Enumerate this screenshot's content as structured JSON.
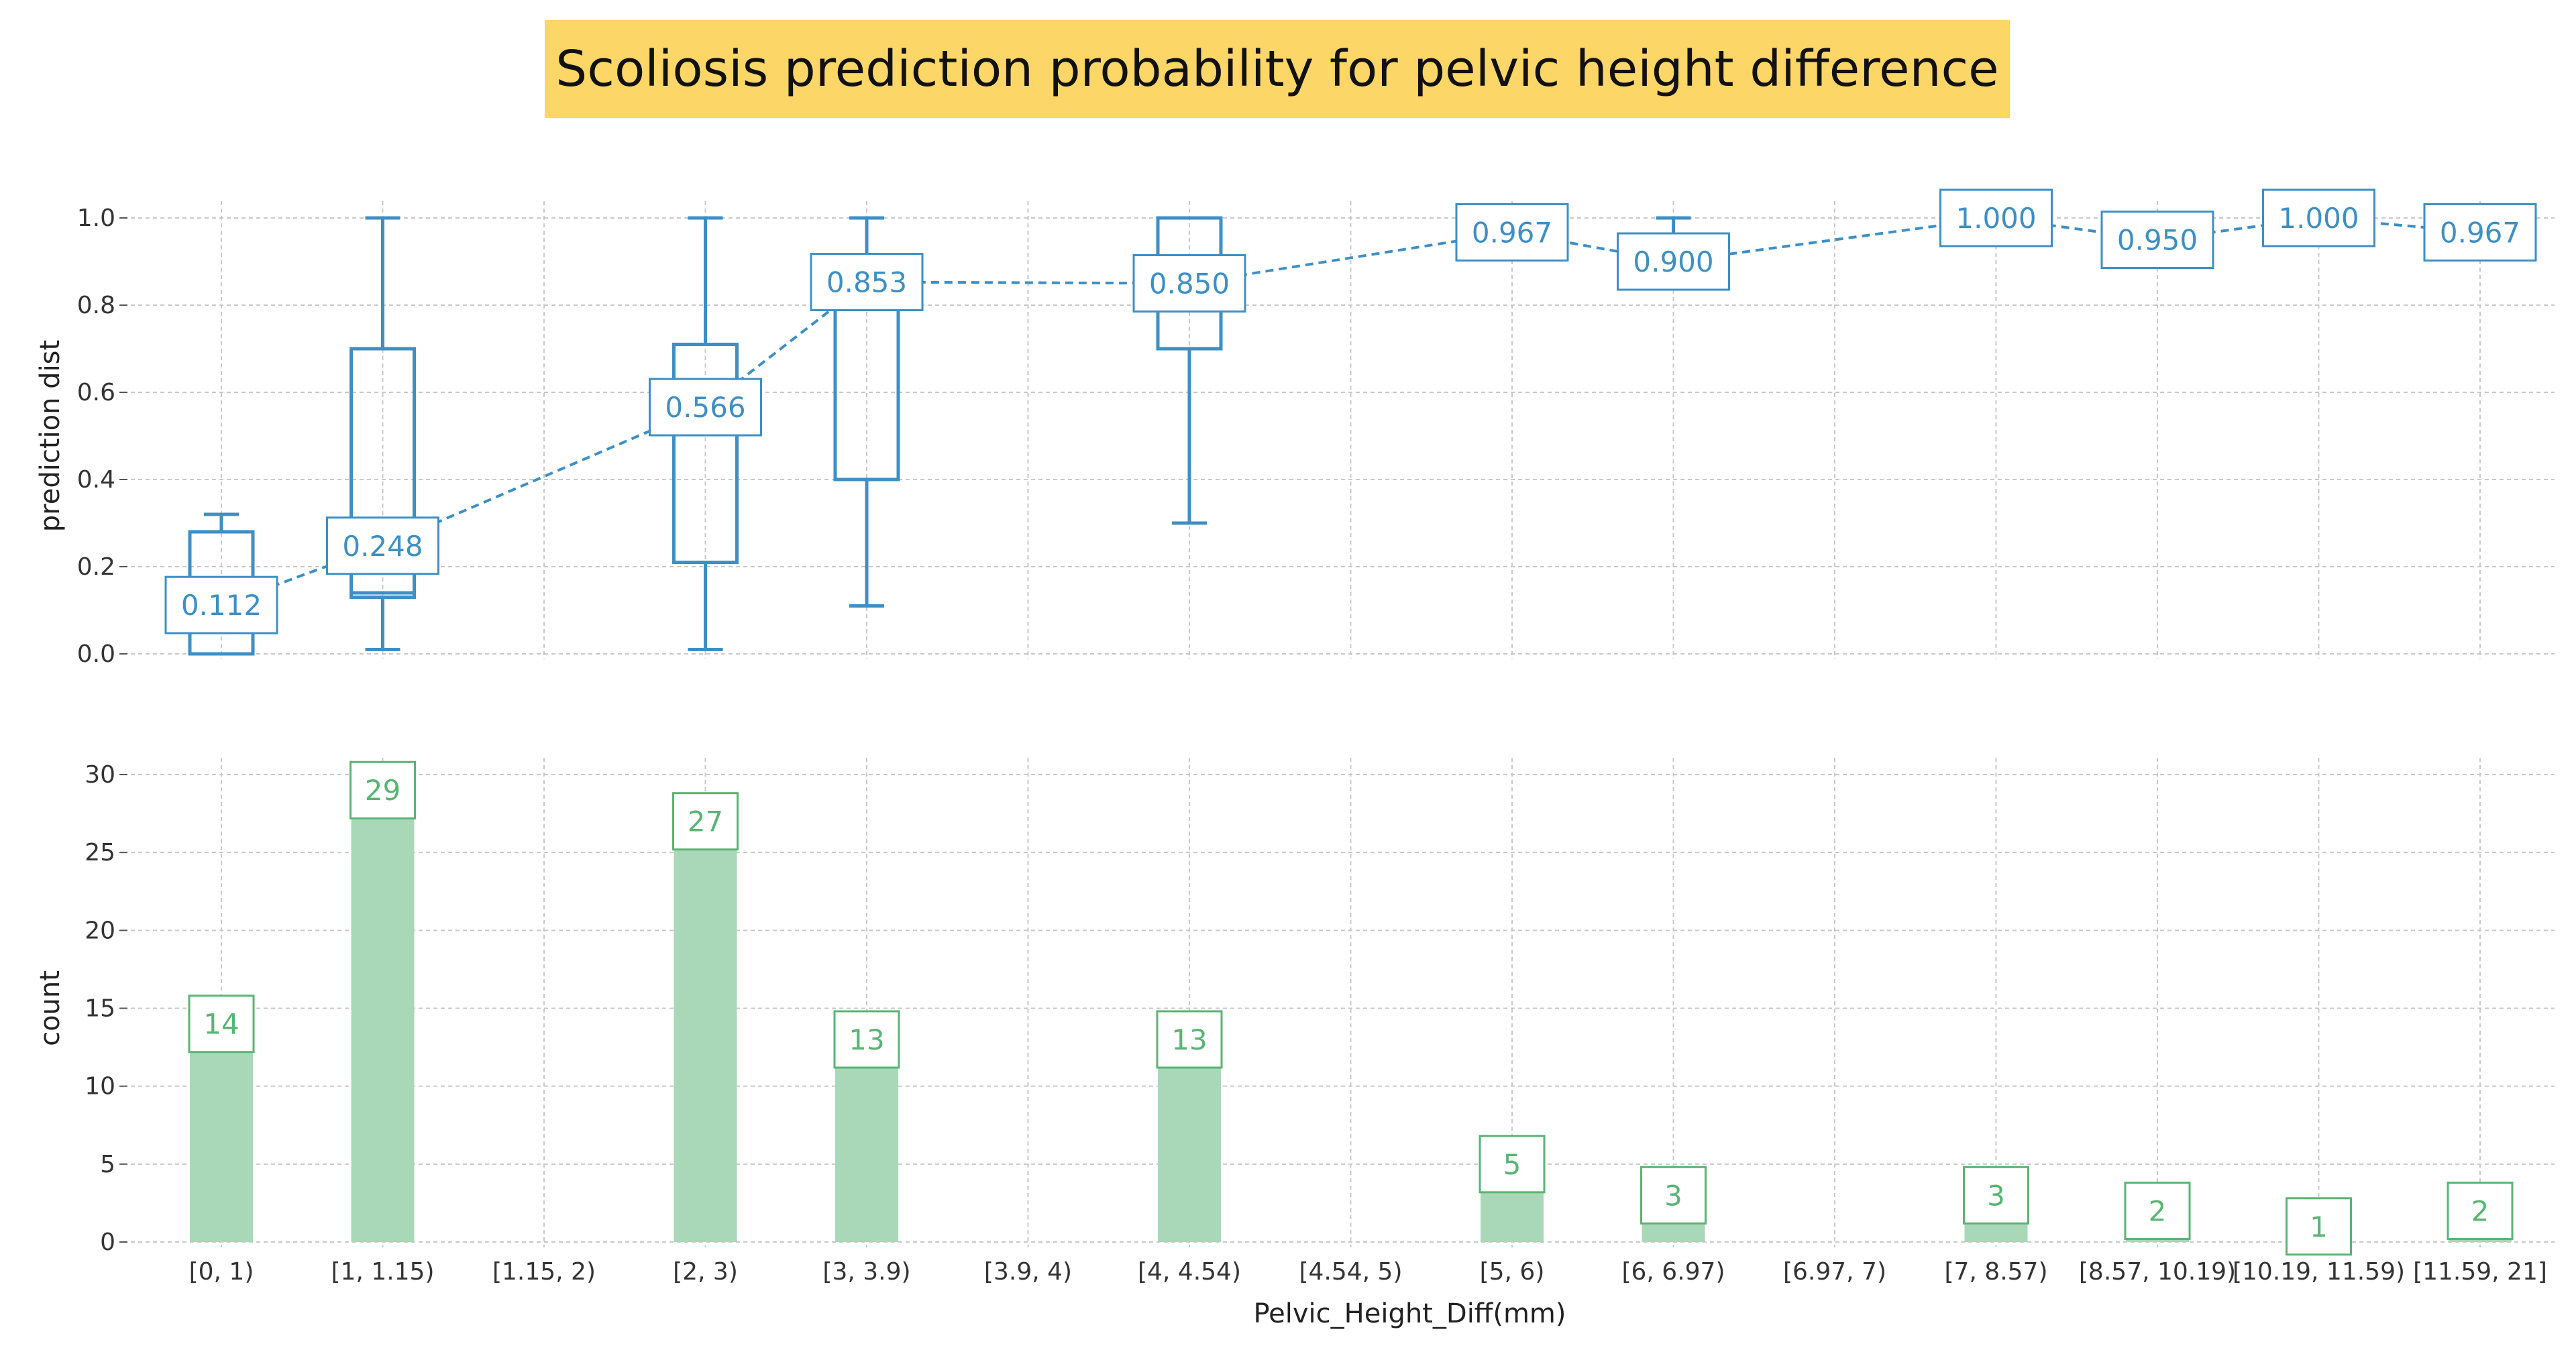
{
  "title": "Scoliosis prediction probability for pelvic height difference",
  "colors": {
    "title_bg": "#fcd666",
    "box": "#3d8fc4",
    "bar": "#a9d8b8",
    "bar_label": "#5ab473",
    "grid": "#c8c8c8"
  },
  "chart_data": [
    {
      "type": "box",
      "ylabel": "prediction dist",
      "ylim": [
        0,
        1.0
      ],
      "yticks": [
        "0.0",
        "0.2",
        "0.4",
        "0.6",
        "0.8",
        "1.0"
      ],
      "grid": true,
      "categories": [
        "[0, 1)",
        "[1, 1.15)",
        "[1.15, 2)",
        "[2, 3)",
        "[3, 3.9)",
        "[3.9, 4)",
        "[4, 4.54)",
        "[4.54, 5)",
        "[5, 6)",
        "[6, 6.97)",
        "[6.97, 7)",
        "[7, 8.57)",
        "[8.57, 10.19)",
        "[10.19, 11.59)",
        "[11.59, 21]"
      ],
      "boxes": [
        {
          "index": 0,
          "min": 0.0,
          "q1": 0.0,
          "median": 0.0,
          "q3": 0.28,
          "max": 0.32
        },
        {
          "index": 1,
          "min": 0.01,
          "q1": 0.13,
          "median": 0.14,
          "q3": 0.7,
          "max": 1.0
        },
        {
          "index": 3,
          "min": 0.01,
          "q1": 0.21,
          "median": 0.52,
          "q3": 0.71,
          "max": 1.0
        },
        {
          "index": 4,
          "min": 0.11,
          "q1": 0.4,
          "median": 0.87,
          "q3": 0.9,
          "max": 1.0
        },
        {
          "index": 6,
          "min": 0.3,
          "q1": 0.7,
          "median": 0.8,
          "q3": 1.0,
          "max": 1.0
        },
        {
          "index": 8,
          "min": 0.92,
          "q1": 0.93,
          "median": 0.99,
          "q3": 1.0,
          "max": 1.0
        },
        {
          "index": 9,
          "min": 0.85,
          "q1": 0.93,
          "median": 0.93,
          "q3": 0.94,
          "max": 1.0
        },
        {
          "index": 11,
          "min": 1.0,
          "q1": 1.0,
          "median": 1.0,
          "q3": 1.0,
          "max": 1.0
        },
        {
          "index": 12,
          "min": 0.9,
          "q1": 0.94,
          "median": 0.97,
          "q3": 0.99,
          "max": 1.0
        },
        {
          "index": 13,
          "min": 1.0,
          "q1": 1.0,
          "median": 1.0,
          "q3": 1.0,
          "max": 1.0
        },
        {
          "index": 14,
          "min": 0.93,
          "q1": 0.95,
          "median": 0.97,
          "q3": 0.98,
          "max": 1.0
        }
      ],
      "mean_line": {
        "indices": [
          0,
          1,
          3,
          4,
          6,
          8,
          9,
          11,
          12,
          13,
          14
        ],
        "values": [
          0.112,
          0.248,
          0.566,
          0.853,
          0.85,
          0.967,
          0.9,
          1.0,
          0.95,
          1.0,
          0.967
        ],
        "labels": [
          "0.112",
          "0.248",
          "0.566",
          "0.853",
          "0.850",
          "0.967",
          "0.900",
          "1.000",
          "0.950",
          "1.000",
          "0.967"
        ]
      }
    },
    {
      "type": "bar",
      "ylabel": "count",
      "xlabel": "Pelvic_Height_Diff(mm)",
      "ylim": [
        0,
        30
      ],
      "yticks": [
        "0",
        "5",
        "10",
        "15",
        "20",
        "25",
        "30"
      ],
      "grid": true,
      "categories": [
        "[0, 1)",
        "[1, 1.15)",
        "[1.15, 2)",
        "[2, 3)",
        "[3, 3.9)",
        "[3.9, 4)",
        "[4, 4.54)",
        "[4.54, 5)",
        "[5, 6)",
        "[6, 6.97)",
        "[6.97, 7)",
        "[7, 8.57)",
        "[8.57, 10.19)",
        "[10.19, 11.59)",
        "[11.59, 21]"
      ],
      "values": [
        14,
        29,
        0,
        27,
        13,
        0,
        13,
        0,
        5,
        3,
        0,
        3,
        2,
        1,
        2
      ],
      "labels": [
        "14",
        "29",
        "",
        "27",
        "13",
        "",
        "13",
        "",
        "5",
        "3",
        "",
        "3",
        "2",
        "1",
        "2"
      ]
    }
  ]
}
